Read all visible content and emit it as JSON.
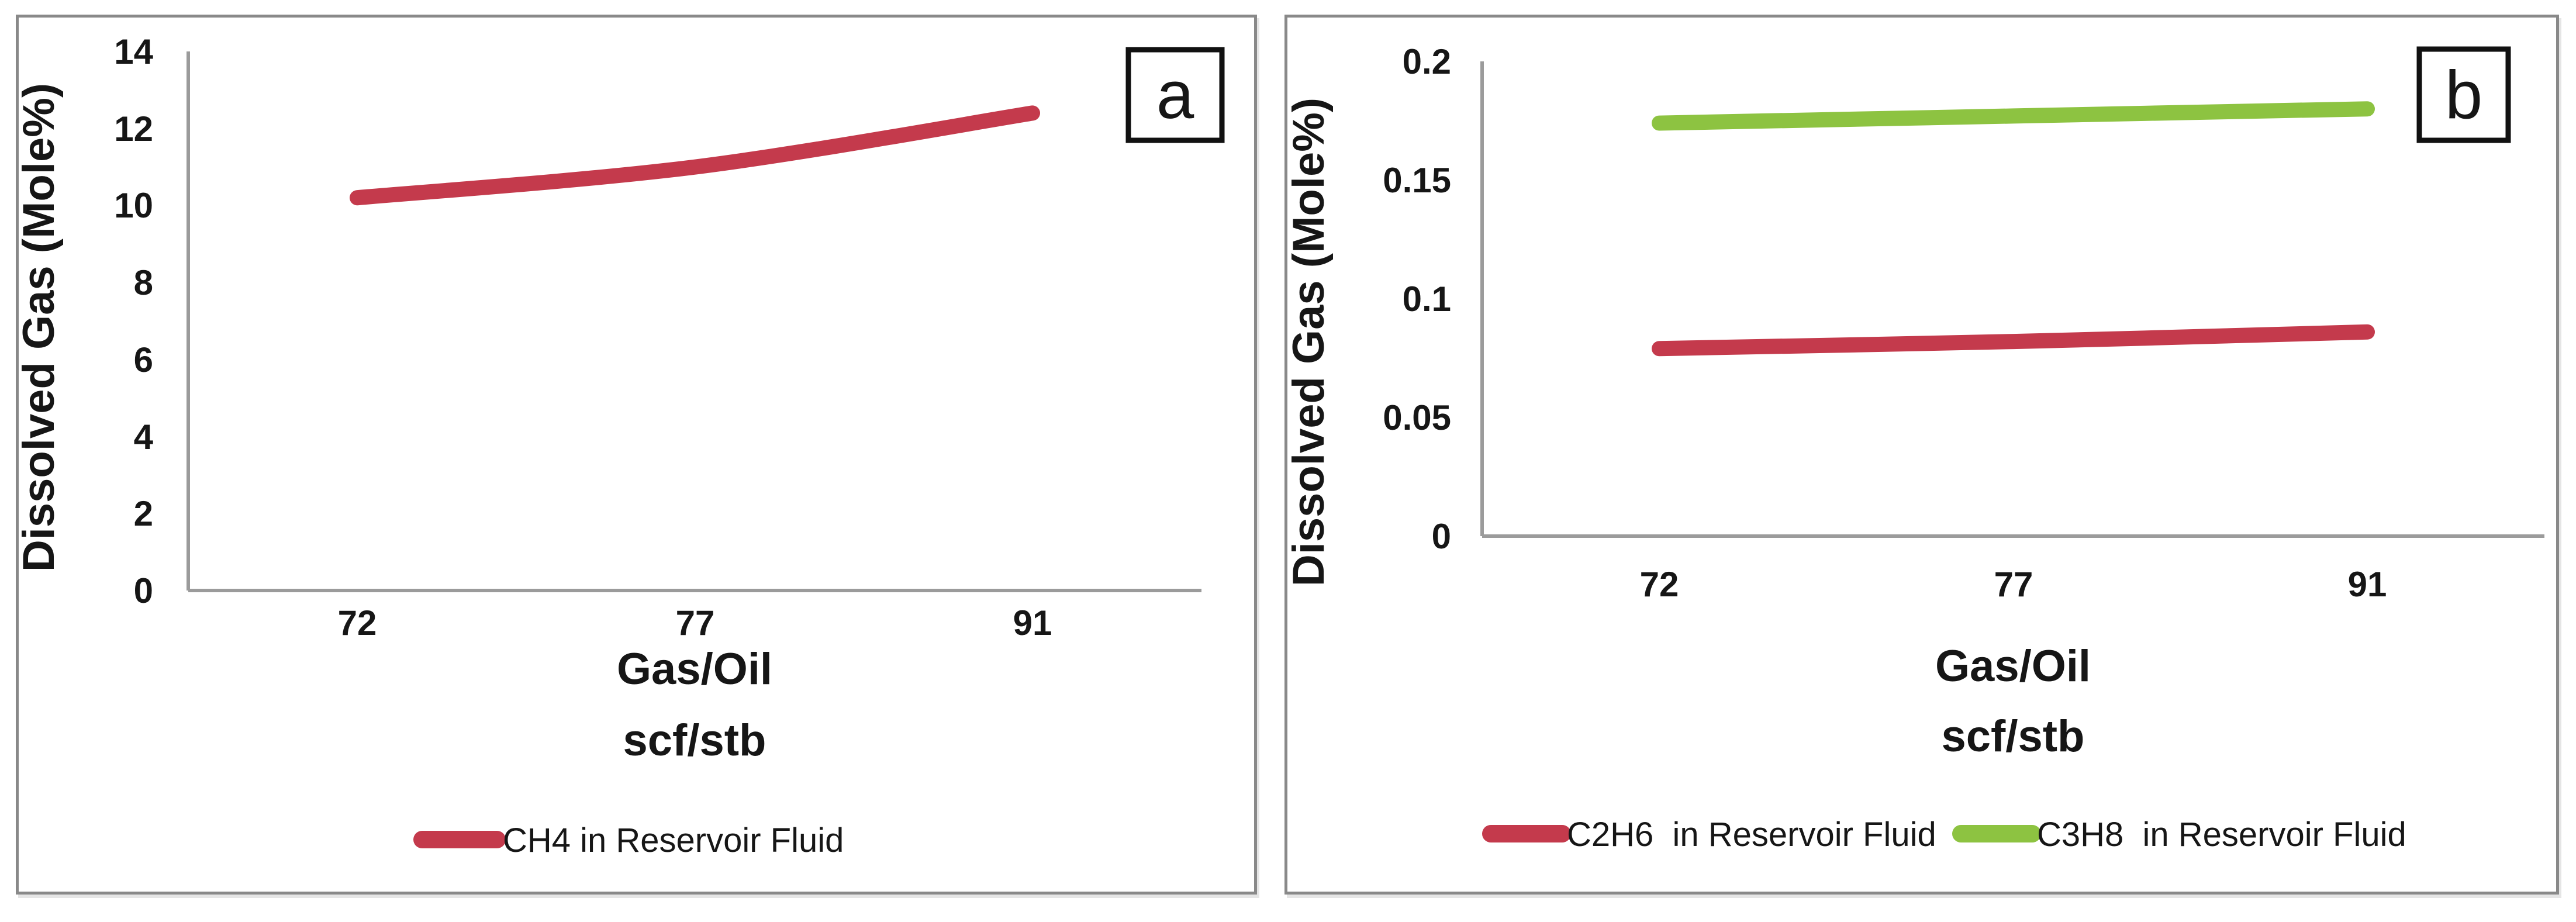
{
  "colors": {
    "series_red": "#c43a4c",
    "series_green": "#8dc341",
    "axis_line": "#9b9b9b",
    "panel_border": "#898989",
    "label_box_border": "#111111",
    "text": "#161616",
    "background": "#ffffff"
  },
  "chart_data": [
    {
      "panel_label": "a",
      "type": "line",
      "x_axis": {
        "title_lines": [
          "Gas/Oil",
          "scf/stb"
        ],
        "categories": [
          "72",
          "77",
          "91"
        ]
      },
      "y_axis": {
        "title": "Dissolved Gas (Mole%)",
        "ticks": [
          "0",
          "2",
          "4",
          "6",
          "8",
          "10",
          "12",
          "14"
        ],
        "min": 0,
        "max": 14
      },
      "series": [
        {
          "name": "CH4 in Reservoir Fluid",
          "color": "#c43a4c",
          "values": [
            10.2,
            11,
            12.4
          ],
          "smooth": true
        }
      ],
      "legend_position": "bottom",
      "grid": false
    },
    {
      "panel_label": "b",
      "type": "line",
      "x_axis": {
        "title_lines": [
          "Gas/Oil",
          "scf/stb"
        ],
        "categories": [
          "72",
          "77",
          "91"
        ]
      },
      "y_axis": {
        "title": "Dissolved Gas (Mole%)",
        "ticks": [
          "0",
          "0.05",
          "0.1",
          "0.15",
          "0.2"
        ],
        "min": 0,
        "max": 0.2
      },
      "series": [
        {
          "name": "C2H6  in Reservoir Fluid",
          "color": "#c43a4c",
          "values": [
            0.079,
            0.082,
            0.086
          ],
          "smooth": true
        },
        {
          "name": "C3H8  in Reservoir Fluid",
          "color": "#8dc341",
          "values": [
            0.174,
            0.177,
            0.18
          ],
          "smooth": true
        }
      ],
      "legend_position": "bottom",
      "grid": false
    }
  ]
}
